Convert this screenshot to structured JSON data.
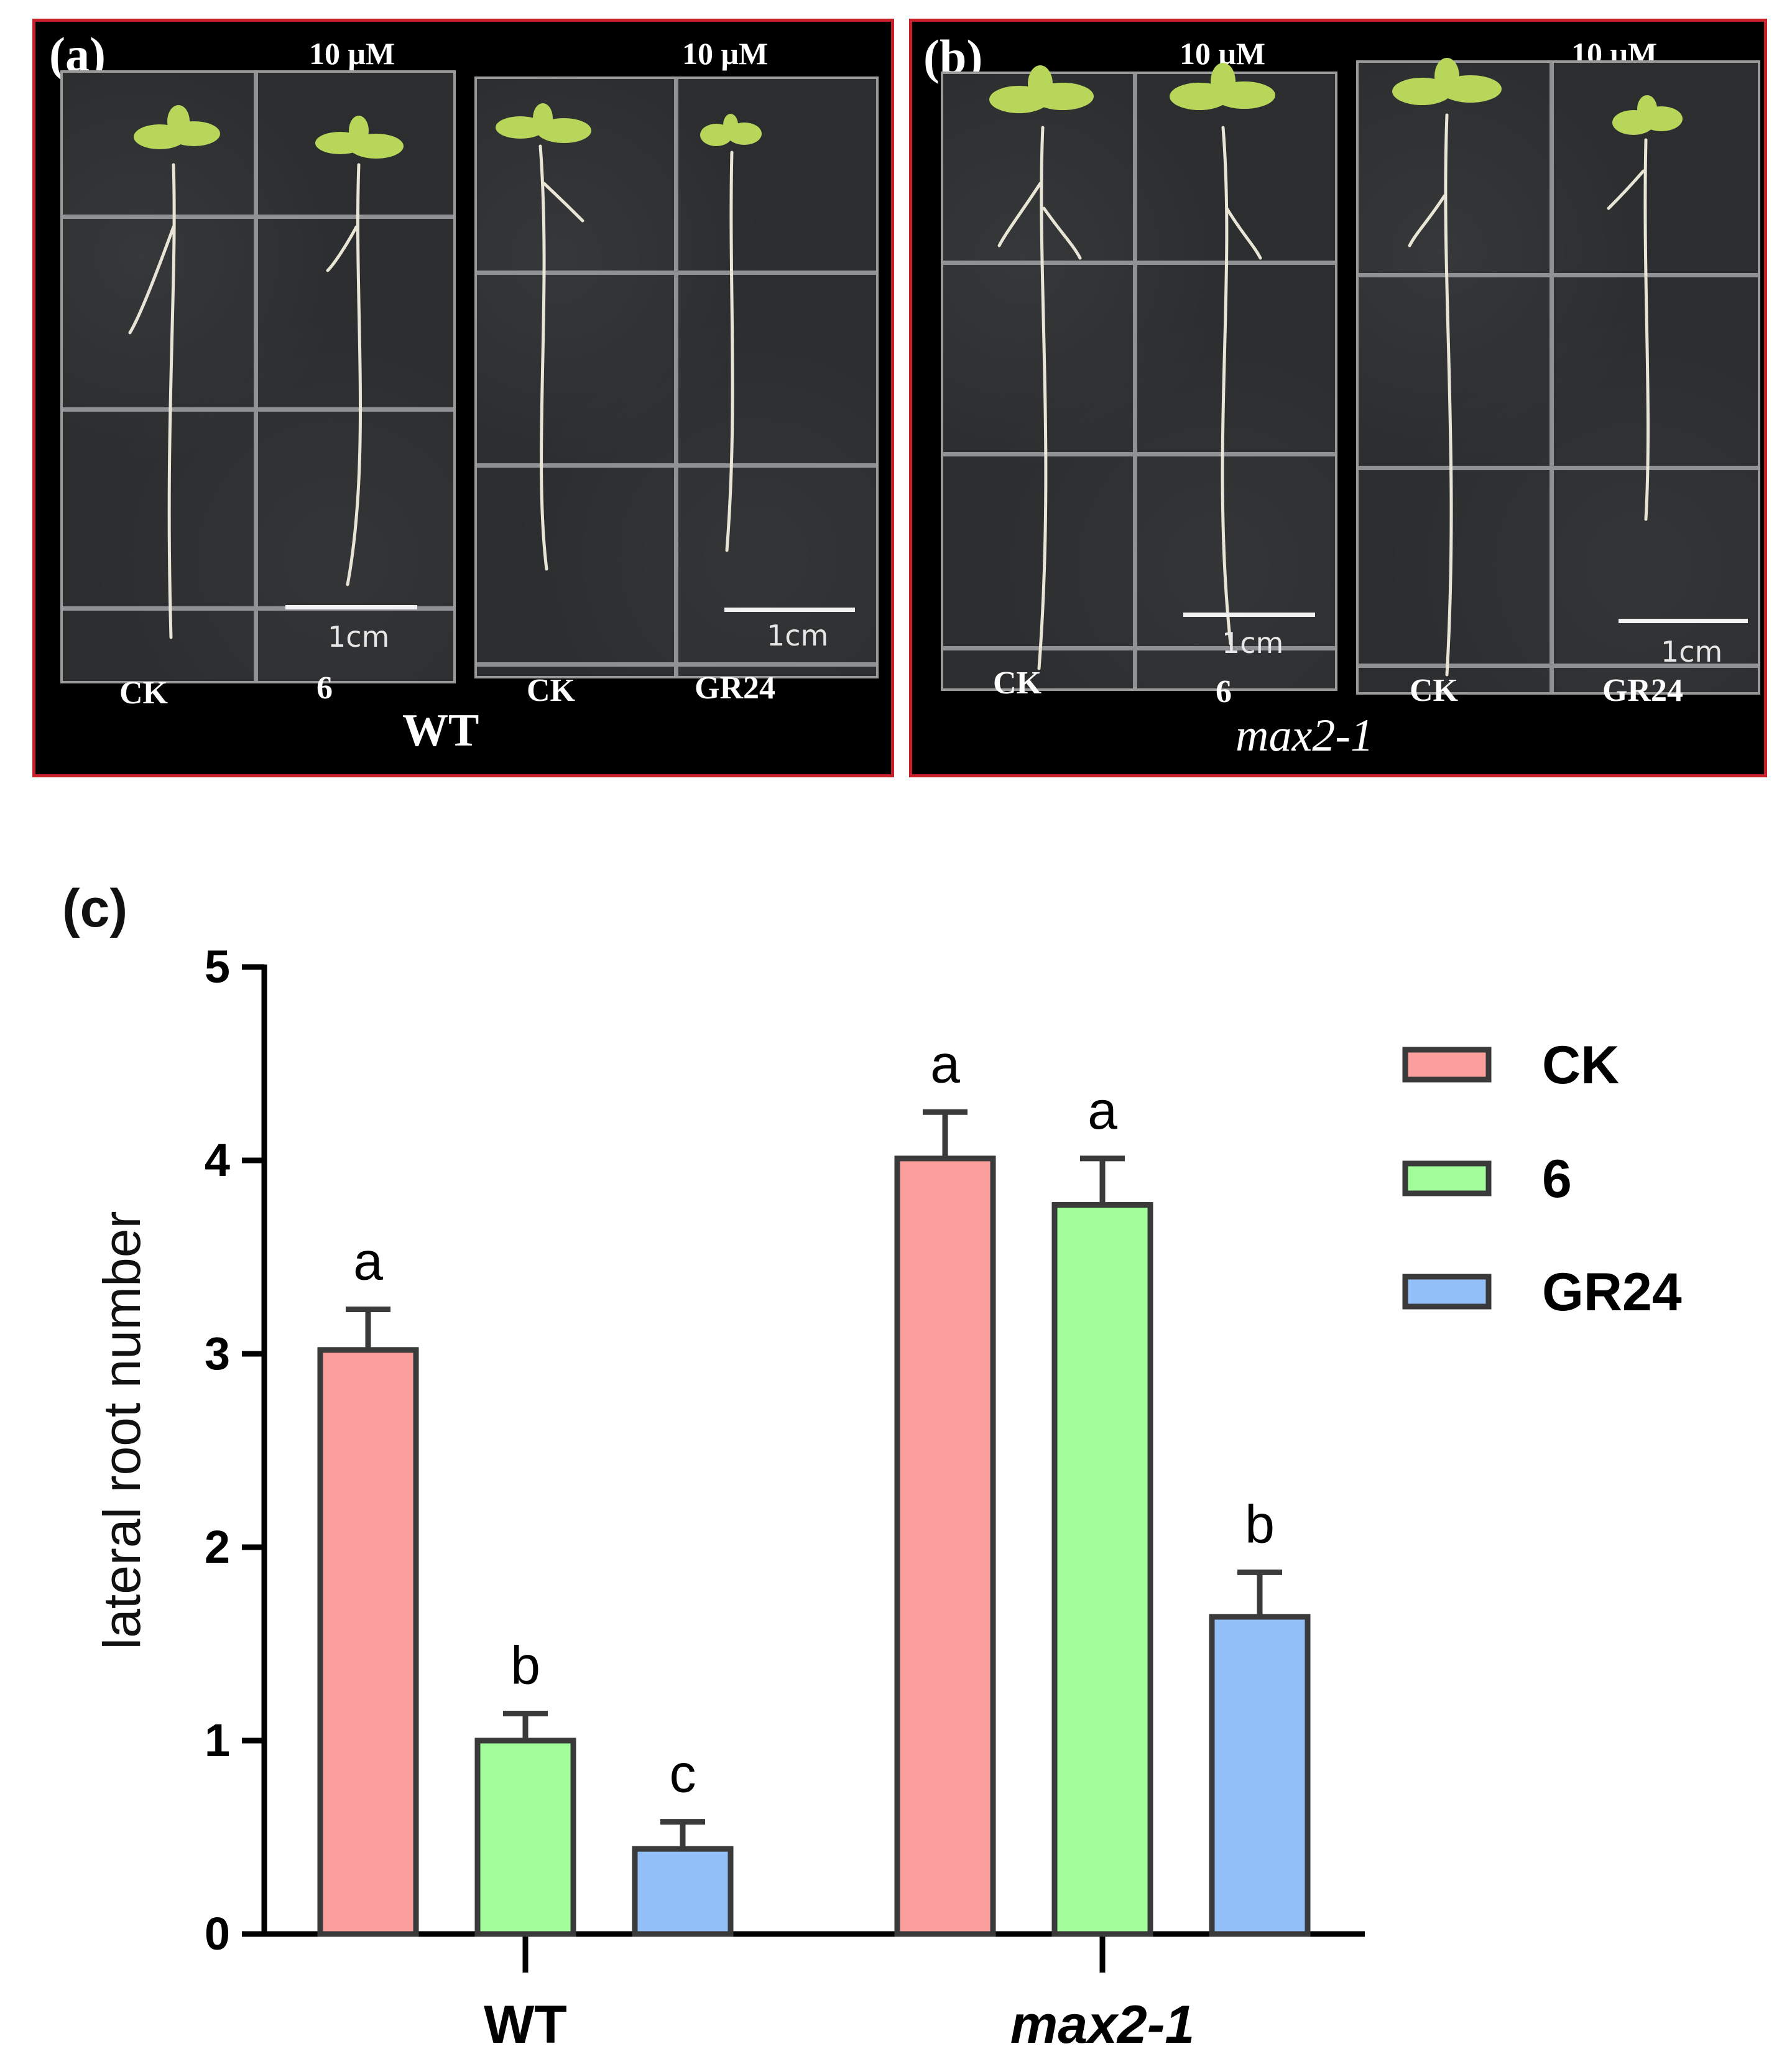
{
  "panel_a": {
    "label": "(a)",
    "conc_left": "10 μM",
    "conc_right": "10 μM",
    "scale_left": "1cm",
    "scale_right": "1cm",
    "treatments": [
      "CK",
      "6",
      "CK",
      "GR24"
    ],
    "genotype": "WT"
  },
  "panel_b": {
    "label": "(b)",
    "conc_left": "10 μM",
    "conc_right": "10 μM",
    "scale_left": "1cm",
    "scale_right": "1cm",
    "treatments": [
      "CK",
      "6",
      "CK",
      "GR24"
    ],
    "genotype": "max2-1"
  },
  "colors": {
    "ck": "#fb9f9d",
    "six": "#a3fd9b",
    "gr24": "#93bff8",
    "outline": "#3a3a3a",
    "panel_border": "#c8202a"
  },
  "chart_data": {
    "type": "bar",
    "panel_label": "(c)",
    "ylabel": "lateral root number",
    "ylim": [
      0,
      5
    ],
    "yticks": [
      0,
      1,
      2,
      3,
      4,
      5
    ],
    "ytick_labels": [
      "0",
      "1",
      "2",
      "3",
      "4",
      "5"
    ],
    "categories": [
      "WT",
      "max2-1"
    ],
    "legend_position": "top-right",
    "series": [
      {
        "name": "CK",
        "color": "#fb9f9d",
        "values": [
          3.02,
          4.01
        ],
        "errors": [
          0.21,
          0.24
        ],
        "letters": [
          "a",
          "a"
        ]
      },
      {
        "name": "6",
        "color": "#a3fd9b",
        "values": [
          1.0,
          3.77
        ],
        "errors": [
          0.14,
          0.24
        ],
        "letters": [
          "b",
          "a"
        ]
      },
      {
        "name": "GR24",
        "color": "#93bff8",
        "values": [
          0.44,
          1.64
        ],
        "errors": [
          0.14,
          0.23
        ],
        "letters": [
          "c",
          "b"
        ]
      }
    ]
  }
}
